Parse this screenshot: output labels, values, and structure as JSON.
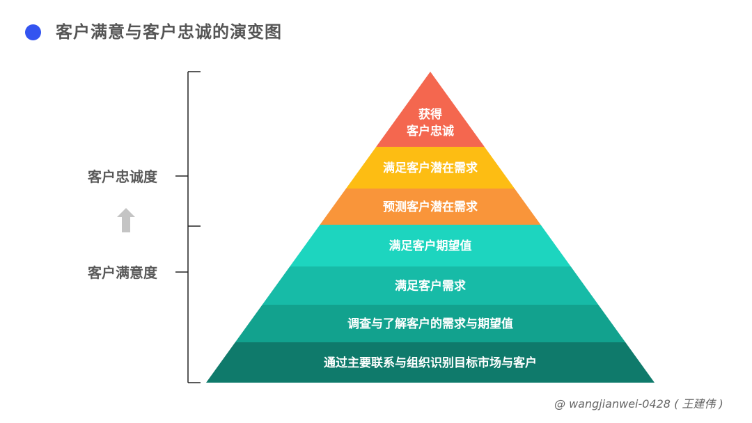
{
  "title": "客户满意与客户忠诚的演变图",
  "accent_color": "#3354f0",
  "side_labels": {
    "loyalty": "客户忠诚度",
    "satisfaction": "客户满意度",
    "arrow_icon": "arrow-up-icon"
  },
  "pyramid": {
    "levels": [
      {
        "lines": [
          "获得",
          "客户忠诚"
        ],
        "color": "#f4674f"
      },
      {
        "lines": [
          "满足客户潜在需求"
        ],
        "color": "#fdbd13"
      },
      {
        "lines": [
          "预测客户潜在需求"
        ],
        "color": "#f9953a"
      },
      {
        "lines": [
          "满足客户期望值"
        ],
        "color": "#1dd5bf"
      },
      {
        "lines": [
          "满足客户需求"
        ],
        "color": "#17bba7"
      },
      {
        "lines": [
          "调查与了解客户的需求与期望值"
        ],
        "color": "#12a28e"
      },
      {
        "lines": [
          "通过主要联系与组织识别目标市场与客户"
        ],
        "color": "#0f7a6b"
      }
    ]
  },
  "footer": "@ wangjianwei-0428 ( 王建伟 )"
}
